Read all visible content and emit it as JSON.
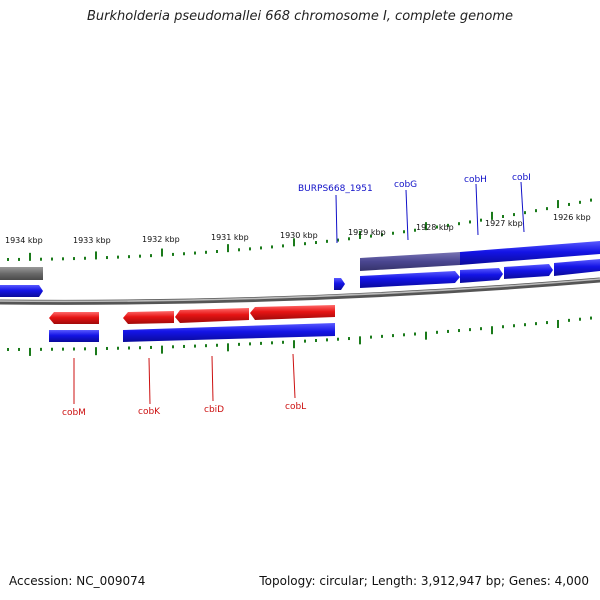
{
  "title": "Burkholderia pseudomallei 668 chromosome I, complete genome",
  "footer": {
    "accession": "Accession: NC_009074",
    "topology": "Topology: circular; Length: 3,912,947 bp; Genes: 4,000"
  },
  "colors": {
    "forward_gene": "#1414e6",
    "reverse_gene": "#e61414",
    "backbone": "#7a7a7a",
    "tick": "#1a7a1a",
    "label_line_forward": "#1010c8",
    "label_line_reverse": "#cc1010"
  },
  "kbp_labels": [
    "1934 kbp",
    "1933 kbp",
    "1932 kbp",
    "1931 kbp",
    "1930 kbp",
    "1929 kbp",
    "1928 kbp",
    "1927 kbp",
    "1926 kbp"
  ],
  "forward_labels": [
    "BURPS668_1951",
    "cobG",
    "cobH",
    "cobI"
  ],
  "reverse_labels": [
    "cobM",
    "cobK",
    "cbiD",
    "cobL"
  ]
}
